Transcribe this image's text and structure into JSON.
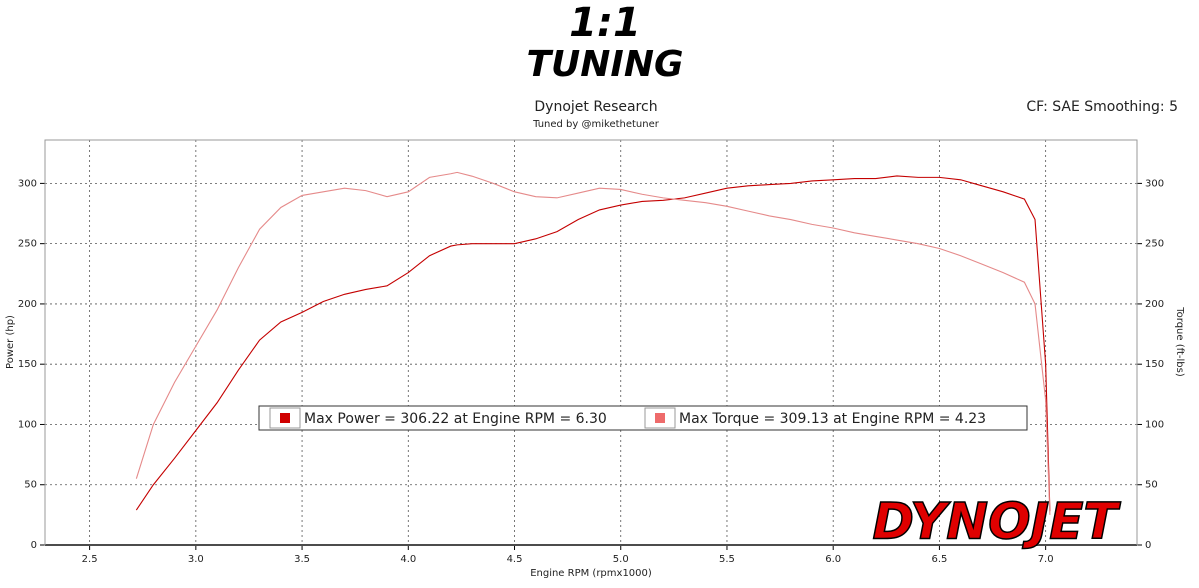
{
  "chart_data": {
    "type": "line",
    "logo": {
      "top": "1:1",
      "bottom": "TUNING"
    },
    "brand": "DYNOJET",
    "title": "Dynojet Research",
    "subtitle": "Tuned by @mikethetuner",
    "settings_text": "CF: SAE Smoothing: 5",
    "x_label": "Engine RPM (rpmx1000)",
    "y_label": "Power (hp)",
    "y2_label": "Torque (ft-lbs)",
    "xlim": [
      2.29,
      7.43
    ],
    "ylim": [
      0,
      336
    ],
    "y2lim": [
      0,
      336
    ],
    "xticks": [
      2.5,
      {
        "value": 3,
        "label": "3.0"
      },
      3.5,
      {
        "value": 4,
        "label": "4.0"
      },
      4.5,
      {
        "value": 5,
        "label": "5.0"
      },
      5.5,
      {
        "value": 6,
        "label": "6.0"
      },
      6.5,
      {
        "value": 7,
        "label": "7.0"
      }
    ],
    "yticks": [
      0,
      50,
      100,
      150,
      200,
      250,
      300
    ],
    "y2ticks": [
      0,
      50,
      100,
      150,
      200,
      250,
      300
    ],
    "grid": true,
    "x": [
      2.72,
      2.8,
      2.9,
      3.0,
      3.1,
      3.2,
      3.3,
      3.4,
      3.5,
      3.6,
      3.7,
      3.8,
      3.9,
      4.0,
      4.1,
      4.2,
      4.23,
      4.3,
      4.4,
      4.5,
      4.6,
      4.7,
      4.8,
      4.9,
      5.0,
      5.1,
      5.2,
      5.3,
      5.4,
      5.5,
      5.6,
      5.7,
      5.8,
      5.9,
      6.0,
      6.1,
      6.2,
      6.3,
      6.4,
      6.5,
      6.6,
      6.7,
      6.8,
      6.9,
      6.95,
      7.0,
      7.02
    ],
    "series": [
      {
        "name": "Max Power = 306.22 at Engine RPM = 6.30",
        "color": "#c40000",
        "marker_color": "#d00000",
        "values": [
          29,
          50,
          72,
          95,
          118,
          145,
          170,
          185,
          193,
          202,
          208,
          212,
          215,
          226,
          240,
          248,
          249,
          250,
          250,
          250,
          254,
          260,
          270,
          278,
          282,
          285,
          286,
          288,
          292,
          296,
          298,
          299,
          300,
          302,
          303,
          304,
          304,
          306.22,
          305,
          305,
          303,
          298,
          293,
          287,
          270,
          150,
          28
        ]
      },
      {
        "name": "Max Torque = 309.13 at Engine RPM = 4.23",
        "color": "#e58a8a",
        "marker_color": "#ee6b6b",
        "axis": "y2",
        "values": [
          55,
          100,
          135,
          165,
          195,
          230,
          262,
          280,
          290,
          293,
          296,
          294,
          289,
          293,
          305,
          308,
          309.13,
          306,
          300,
          293,
          289,
          288,
          292,
          296,
          295,
          291,
          288,
          286,
          284,
          281,
          277,
          273,
          270,
          266,
          263,
          259,
          256,
          253,
          250,
          246,
          240,
          233,
          226,
          218,
          200,
          120,
          25
        ]
      }
    ]
  }
}
